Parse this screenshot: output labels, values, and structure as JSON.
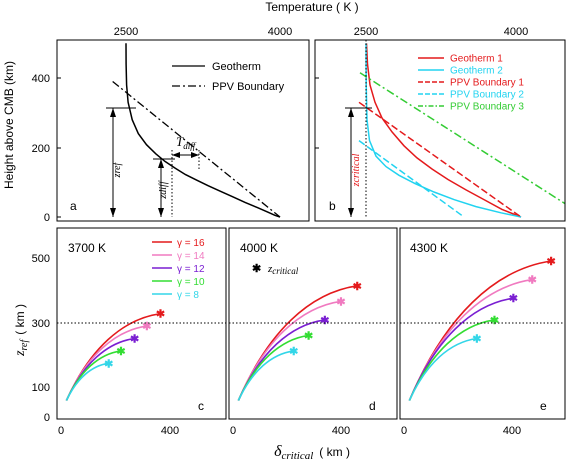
{
  "chart_data": {
    "type": "line",
    "top_x_label": "Temperature  ( K )",
    "top_y_label": "Height above CMB  (km)",
    "bottom_x_label_symbol": "δ",
    "bottom_x_label_sub": "critical",
    "bottom_x_label_unit": "( km )",
    "bottom_y_label_symbol": "z",
    "bottom_y_label_sub": "ref",
    "bottom_y_label_unit": "( km )",
    "panel_a": {
      "letter": "a",
      "xlim": [
        2500,
        4000
      ],
      "ylim": [
        0,
        500
      ],
      "x_ticks": [
        "2500",
        "4000"
      ],
      "y_ticks": [
        "0",
        "200",
        "400"
      ],
      "legend": [
        "Geotherm",
        "PPV Boundary"
      ],
      "annotations": {
        "t_diff": "T",
        "t_diff_sub": "diff",
        "z_ref": "zref",
        "z_diff": "zdiff"
      },
      "geotherm": {
        "x": [
          2500,
          2501,
          2506,
          2520,
          2560,
          2620,
          2700,
          2790,
          2880,
          2980,
          3080,
          3190,
          3300,
          3420,
          3540,
          3660,
          3780,
          3880,
          3950,
          4000
        ],
        "y": [
          500,
          440,
          380,
          330,
          280,
          240,
          208,
          182,
          160,
          140,
          122,
          106,
          90,
          74,
          58,
          42,
          27,
          14,
          5,
          0
        ]
      },
      "ppv_boundary": {
        "x": [
          2370,
          4000
        ],
        "y": [
          390,
          0
        ]
      }
    },
    "panel_b": {
      "letter": "b",
      "xlim": [
        2500,
        4000
      ],
      "ylim": [
        0,
        500
      ],
      "x_ticks": [
        "2500",
        "4000"
      ],
      "annotations": {
        "z_critical": "zcritical"
      },
      "series": [
        {
          "name": "Geotherm 1",
          "color": "#e41a1c",
          "dash": "solid",
          "x": [
            2505,
            2515,
            2540,
            2590,
            2660,
            2760,
            2880,
            3010,
            3160,
            3320,
            3500,
            3680,
            3860,
            4050
          ],
          "y": [
            500,
            440,
            380,
            330,
            285,
            245,
            205,
            170,
            138,
            108,
            78,
            50,
            22,
            0
          ]
        },
        {
          "name": "Geotherm 2",
          "color": "#22d3f0",
          "dash": "solid",
          "x": [
            2500,
            2502,
            2510,
            2535,
            2600,
            2700,
            2830,
            2990,
            3180,
            3380,
            3600,
            3850,
            4050
          ],
          "y": [
            500,
            380,
            280,
            220,
            175,
            145,
            120,
            96,
            72,
            50,
            30,
            12,
            0
          ]
        },
        {
          "name": "PPV Boundary 1",
          "color": "#e41a1c",
          "dash": "dashed",
          "x": [
            2430,
            4050
          ],
          "y": [
            330,
            0
          ]
        },
        {
          "name": "PPV Boundary 2",
          "color": "#22d3f0",
          "dash": "dashed",
          "x": [
            2430,
            3480
          ],
          "y": [
            220,
            0
          ]
        },
        {
          "name": "PPV Boundary 3",
          "color": "#33cc33",
          "dash": "dashdot",
          "x": [
            2440,
            4700
          ],
          "y": [
            415,
            0
          ]
        }
      ]
    },
    "bottom_panels": {
      "xlim": [
        0,
        560
      ],
      "ylim": [
        0,
        560
      ],
      "x_ticks": [
        0,
        400
      ],
      "y_ticks": [
        0,
        100,
        300,
        500
      ],
      "reference_line_y": 300,
      "legend_title": "",
      "gamma_legend": [
        {
          "label": "γ = 16",
          "color": "#e41a1c"
        },
        {
          "label": "γ = 14",
          "color": "#f07ac0"
        },
        {
          "label": "γ = 12",
          "color": "#7a1fd2"
        },
        {
          "label": "γ = 10",
          "color": "#33dd33"
        },
        {
          "label": "γ = 8",
          "color": "#33d6e8"
        }
      ],
      "marker_legend_symbol": "z",
      "marker_legend_sub": "critical",
      "panels": [
        {
          "title": "3700 K",
          "letter": "c",
          "endpoints": [
            {
              "x": 365,
              "y": 330
            },
            {
              "x": 315,
              "y": 290
            },
            {
              "x": 270,
              "y": 250
            },
            {
              "x": 220,
              "y": 210
            },
            {
              "x": 175,
              "y": 170
            }
          ]
        },
        {
          "title": "4000 K",
          "letter": "d",
          "endpoints": [
            {
              "x": 460,
              "y": 420
            },
            {
              "x": 400,
              "y": 370
            },
            {
              "x": 340,
              "y": 310
            },
            {
              "x": 280,
              "y": 260
            },
            {
              "x": 225,
              "y": 210
            }
          ]
        },
        {
          "title": "4300 K",
          "letter": "e",
          "endpoints": [
            {
              "x": 545,
              "y": 500
            },
            {
              "x": 475,
              "y": 440
            },
            {
              "x": 405,
              "y": 380
            },
            {
              "x": 335,
              "y": 310
            },
            {
              "x": 270,
              "y": 250
            }
          ]
        }
      ],
      "curve_start": {
        "x": 20,
        "y": 50
      }
    }
  }
}
